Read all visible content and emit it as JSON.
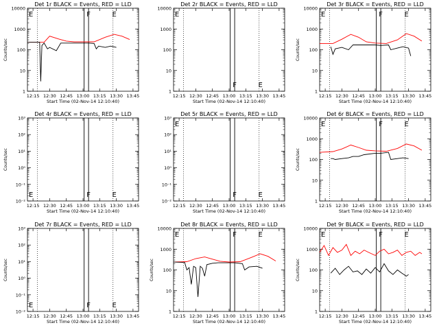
{
  "chart_data": [
    {
      "type": "line",
      "title": "Det 1r BLACK = Events, RED = LLD",
      "xlabel": "Start Time (02-Nov-14 12:10:40)",
      "ylabel": "Counts/sec",
      "x_ticks": [
        "12:15",
        "12:30",
        "12:45",
        "13:00",
        "13:15",
        "13:30",
        "13:45"
      ],
      "y_ticks": [
        "1",
        "10",
        "100",
        "1000",
        "10000"
      ],
      "y_scale": "log",
      "ylim": [
        1,
        10000
      ],
      "markers": [
        {
          "label": "E",
          "t": "12:10"
        },
        {
          "label": "F",
          "t": "13:02"
        },
        {
          "label": "E",
          "t": "13:25"
        }
      ],
      "series": [
        {
          "color": "#ff0000",
          "points": [
            [
              "12:10",
              230
            ],
            [
              "12:25",
              230
            ],
            [
              "12:30",
              450
            ],
            [
              "12:38",
              330
            ],
            [
              "12:45",
              260
            ],
            [
              "12:52",
              240
            ],
            [
              "13:00",
              240
            ],
            [
              "13:10",
              240
            ],
            [
              "13:20",
              400
            ],
            [
              "13:28",
              550
            ],
            [
              "13:35",
              450
            ],
            [
              "13:42",
              310
            ]
          ]
        },
        {
          "color": "#000000",
          "points": [
            [
              "12:10",
              230
            ],
            [
              "12:21",
              230
            ],
            [
              "12:22",
              3
            ],
            [
              "12:23",
              160
            ],
            [
              "12:25",
              210
            ],
            [
              "12:28",
              110
            ],
            [
              "12:30",
              130
            ],
            [
              "12:36",
              90
            ],
            [
              "12:40",
              210
            ],
            [
              "12:45",
              210
            ],
            [
              "13:00",
              210
            ],
            [
              "13:05",
              210
            ],
            [
              "13:10",
              200
            ],
            [
              "13:12",
              110
            ],
            [
              "13:14",
              150
            ],
            [
              "13:20",
              130
            ],
            [
              "13:25",
              150
            ],
            [
              "13:30",
              130
            ]
          ]
        }
      ]
    },
    {
      "type": "line",
      "title": "Det 2r BLACK = Events, RED = LLD",
      "xlabel": "Start Time (02-Nov-14 12:10:40)",
      "ylabel": "",
      "x_ticks": [
        "12:15",
        "12:30",
        "12:45",
        "13:00",
        "13:15",
        "13:30",
        "13:45"
      ],
      "y_ticks": [
        "1",
        "10",
        "100",
        "1000",
        "10000"
      ],
      "y_scale": "log",
      "ylim": [
        1,
        10000
      ],
      "markers": [
        {
          "label": "E",
          "t": "12:10"
        },
        {
          "label": "F",
          "t": "13:02"
        },
        {
          "label": "E",
          "t": "13:25"
        }
      ],
      "series": []
    },
    {
      "type": "line",
      "title": "Det 3r BLACK = Events, RED = LLD",
      "xlabel": "Start Time (02-Nov-14 12:10:40)",
      "ylabel": "Counts/sec",
      "x_ticks": [
        "12:15",
        "12:30",
        "12:45",
        "13:00",
        "13:15",
        "13:30",
        "13:45"
      ],
      "y_ticks": [
        "1",
        "10",
        "100",
        "1000",
        "10000"
      ],
      "y_scale": "log",
      "ylim": [
        1,
        10000
      ],
      "markers": [
        {
          "label": "E",
          "t": "12:10"
        },
        {
          "label": "F",
          "t": "13:02"
        },
        {
          "label": "E",
          "t": "13:25"
        }
      ],
      "series": [
        {
          "color": "#ff0000",
          "points": [
            [
              "12:10",
              200
            ],
            [
              "12:22",
              200
            ],
            [
              "12:30",
              320
            ],
            [
              "12:38",
              550
            ],
            [
              "12:45",
              400
            ],
            [
              "12:52",
              240
            ],
            [
              "13:00",
              210
            ],
            [
              "13:10",
              200
            ],
            [
              "13:20",
              300
            ],
            [
              "13:28",
              600
            ],
            [
              "13:35",
              450
            ],
            [
              "13:42",
              260
            ]
          ]
        },
        {
          "color": "#000000",
          "points": [
            [
              "12:20",
              140
            ],
            [
              "12:22",
              60
            ],
            [
              "12:24",
              110
            ],
            [
              "12:30",
              130
            ],
            [
              "12:36",
              100
            ],
            [
              "12:40",
              170
            ],
            [
              "12:45",
              170
            ],
            [
              "12:50",
              170
            ],
            [
              "13:00",
              170
            ],
            [
              "13:05",
              160
            ],
            [
              "13:12",
              170
            ],
            [
              "13:14",
              100
            ],
            [
              "13:20",
              120
            ],
            [
              "13:25",
              140
            ],
            [
              "13:30",
              120
            ],
            [
              "13:32",
              50
            ]
          ]
        }
      ]
    },
    {
      "type": "line",
      "title": "Det 4r BLACK = Events, RED = LLD",
      "xlabel": "Start Time (02-Nov-14 12:10:40)",
      "ylabel": "Counts/sec",
      "x_ticks": [
        "12:15",
        "12:30",
        "12:45",
        "13:00",
        "13:15",
        "13:30",
        "13:45"
      ],
      "y_ticks": [
        "10⁻²",
        "10⁻¹",
        "10⁰",
        "10¹",
        "10²",
        "10³"
      ],
      "y_scale": "log",
      "ylim": [
        0.01,
        1000
      ],
      "markers": [
        {
          "label": "E",
          "t": "12:10"
        },
        {
          "label": "F",
          "t": "13:02"
        },
        {
          "label": "E",
          "t": "13:25"
        }
      ],
      "series": []
    },
    {
      "type": "line",
      "title": "Det 5r BLACK = Events, RED = LLD",
      "xlabel": "Start Time (02-Nov-14 12:10:40)",
      "ylabel": "",
      "x_ticks": [
        "12:15",
        "12:30",
        "12:45",
        "13:00",
        "13:15",
        "13:30",
        "13:45"
      ],
      "y_ticks": [
        "10⁻²",
        "10⁻¹",
        "10⁰",
        "10¹",
        "10²",
        "10³"
      ],
      "y_scale": "log",
      "ylim": [
        0.01,
        1000
      ],
      "markers": [
        {
          "label": "E",
          "t": "12:10"
        },
        {
          "label": "F",
          "t": "13:02"
        },
        {
          "label": "E",
          "t": "13:25"
        }
      ],
      "series": []
    },
    {
      "type": "line",
      "title": "Det 6r BLACK = Events, RED = LLD",
      "xlabel": "Start Time (02-Nov-14 12:10:40)",
      "ylabel": "Counts/sec",
      "x_ticks": [
        "12:15",
        "12:30",
        "12:45",
        "13:00",
        "13:15",
        "13:30",
        "13:45"
      ],
      "y_ticks": [
        "1",
        "10",
        "100",
        "1000",
        "10000"
      ],
      "y_scale": "log",
      "ylim": [
        1,
        10000
      ],
      "markers": [
        {
          "label": "E",
          "t": "12:10"
        },
        {
          "label": "F",
          "t": "13:02"
        },
        {
          "label": "E",
          "t": "13:25"
        }
      ],
      "series": [
        {
          "color": "#ff0000",
          "points": [
            [
              "12:10",
              220
            ],
            [
              "12:22",
              240
            ],
            [
              "12:30",
              320
            ],
            [
              "12:38",
              500
            ],
            [
              "12:45",
              380
            ],
            [
              "12:52",
              280
            ],
            [
              "13:00",
              260
            ],
            [
              "13:10",
              250
            ],
            [
              "13:20",
              340
            ],
            [
              "13:28",
              560
            ],
            [
              "13:35",
              450
            ],
            [
              "13:42",
              280
            ]
          ]
        },
        {
          "color": "#000000",
          "points": [
            [
              "12:20",
              110
            ],
            [
              "12:22",
              110
            ],
            [
              "12:24",
              100
            ],
            [
              "12:30",
              110
            ],
            [
              "12:36",
              120
            ],
            [
              "12:40",
              140
            ],
            [
              "12:45",
              140
            ],
            [
              "12:50",
              170
            ],
            [
              "13:00",
              200
            ],
            [
              "13:05",
              200
            ],
            [
              "13:12",
              220
            ],
            [
              "13:14",
              100
            ],
            [
              "13:20",
              110
            ],
            [
              "13:25",
              120
            ],
            [
              "13:30",
              110
            ]
          ]
        }
      ]
    },
    {
      "type": "line",
      "title": "Det 7r BLACK = Events, RED = LLD",
      "xlabel": "Start Time (02-Nov-14 12:10:40)",
      "ylabel": "Counts/sec",
      "x_ticks": [
        "12:15",
        "12:30",
        "12:45",
        "13:00",
        "13:15",
        "13:30",
        "13:45"
      ],
      "y_ticks": [
        "10⁻²",
        "10⁻¹",
        "10⁰",
        "10¹",
        "10²",
        "10³"
      ],
      "y_scale": "log",
      "ylim": [
        0.01,
        1000
      ],
      "markers": [
        {
          "label": "E",
          "t": "12:10"
        },
        {
          "label": "F",
          "t": "13:02"
        },
        {
          "label": "E",
          "t": "13:25"
        }
      ],
      "series": []
    },
    {
      "type": "line",
      "title": "Det 8r BLACK = Events, RED = LLD",
      "xlabel": "Start Time (02-Nov-14 12:10:40)",
      "ylabel": "Counts/sec",
      "x_ticks": [
        "12:15",
        "12:30",
        "12:45",
        "13:00",
        "13:15",
        "13:30",
        "13:45"
      ],
      "y_ticks": [
        "1",
        "10",
        "100",
        "1000",
        "10000"
      ],
      "y_scale": "log",
      "ylim": [
        1,
        10000
      ],
      "markers": [
        {
          "label": "E",
          "t": "12:10"
        },
        {
          "label": "F",
          "t": "13:02"
        },
        {
          "label": "E",
          "t": "13:25"
        }
      ],
      "series": [
        {
          "color": "#ff0000",
          "points": [
            [
              "12:10",
              240
            ],
            [
              "12:22",
              250
            ],
            [
              "12:30",
              350
            ],
            [
              "12:38",
              420
            ],
            [
              "12:45",
              330
            ],
            [
              "12:52",
              260
            ],
            [
              "13:00",
              240
            ],
            [
              "13:10",
              250
            ],
            [
              "13:20",
              400
            ],
            [
              "13:28",
              600
            ],
            [
              "13:35",
              450
            ],
            [
              "13:42",
              270
            ]
          ]
        },
        {
          "color": "#000000",
          "points": [
            [
              "12:10",
              240
            ],
            [
              "12:20",
              230
            ],
            [
              "12:22",
              100
            ],
            [
              "12:24",
              130
            ],
            [
              "12:26",
              20
            ],
            [
              "12:28",
              150
            ],
            [
              "12:30",
              130
            ],
            [
              "12:32",
              5
            ],
            [
              "12:34",
              150
            ],
            [
              "12:36",
              120
            ],
            [
              "12:38",
              50
            ],
            [
              "12:40",
              180
            ],
            [
              "12:45",
              210
            ],
            [
              "12:50",
              220
            ],
            [
              "13:00",
              220
            ],
            [
              "13:05",
              220
            ],
            [
              "13:12",
              200
            ],
            [
              "13:14",
              100
            ],
            [
              "13:18",
              140
            ],
            [
              "13:25",
              150
            ],
            [
              "13:30",
              120
            ]
          ]
        }
      ]
    },
    {
      "type": "line",
      "title": "Det 9r BLACK = Events, RED = LLD",
      "xlabel": "Start Time (02-Nov-14 12:10:40)",
      "ylabel": "Counts/sec",
      "x_ticks": [
        "12:15",
        "12:30",
        "12:45",
        "13:00",
        "13:15",
        "13:30",
        "13:45"
      ],
      "y_ticks": [
        "1",
        "10",
        "100",
        "1000",
        "10000"
      ],
      "y_scale": "log",
      "ylim": [
        1,
        10000
      ],
      "markers": [
        {
          "label": "E",
          "t": "12:10"
        },
        {
          "label": "F",
          "t": "13:02"
        },
        {
          "label": "E",
          "t": "13:25"
        }
      ],
      "series": [
        {
          "color": "#ff0000",
          "points": [
            [
              "12:10",
              700
            ],
            [
              "12:14",
              1500
            ],
            [
              "12:18",
              500
            ],
            [
              "12:22",
              1200
            ],
            [
              "12:26",
              700
            ],
            [
              "12:30",
              900
            ],
            [
              "12:34",
              1700
            ],
            [
              "12:38",
              500
            ],
            [
              "12:42",
              800
            ],
            [
              "12:46",
              600
            ],
            [
              "12:50",
              900
            ],
            [
              "12:54",
              700
            ],
            [
              "13:00",
              500
            ],
            [
              "13:04",
              800
            ],
            [
              "13:08",
              1000
            ],
            [
              "13:12",
              600
            ],
            [
              "13:16",
              700
            ],
            [
              "13:20",
              900
            ],
            [
              "13:24",
              500
            ],
            [
              "13:28",
              700
            ],
            [
              "13:32",
              800
            ],
            [
              "13:36",
              500
            ],
            [
              "13:40",
              700
            ],
            [
              "13:42",
              600
            ]
          ]
        },
        {
          "color": "#000000",
          "points": [
            [
              "12:20",
              70
            ],
            [
              "12:24",
              120
            ],
            [
              "12:28",
              60
            ],
            [
              "12:32",
              100
            ],
            [
              "12:36",
              150
            ],
            [
              "12:40",
              80
            ],
            [
              "12:44",
              90
            ],
            [
              "12:48",
              60
            ],
            [
              "12:52",
              110
            ],
            [
              "12:56",
              70
            ],
            [
              "13:00",
              130
            ],
            [
              "13:04",
              80
            ],
            [
              "13:08",
              200
            ],
            [
              "13:12",
              90
            ],
            [
              "13:16",
              60
            ],
            [
              "13:20",
              100
            ],
            [
              "13:24",
              70
            ],
            [
              "13:28",
              50
            ],
            [
              "13:30",
              60
            ]
          ]
        }
      ]
    }
  ]
}
